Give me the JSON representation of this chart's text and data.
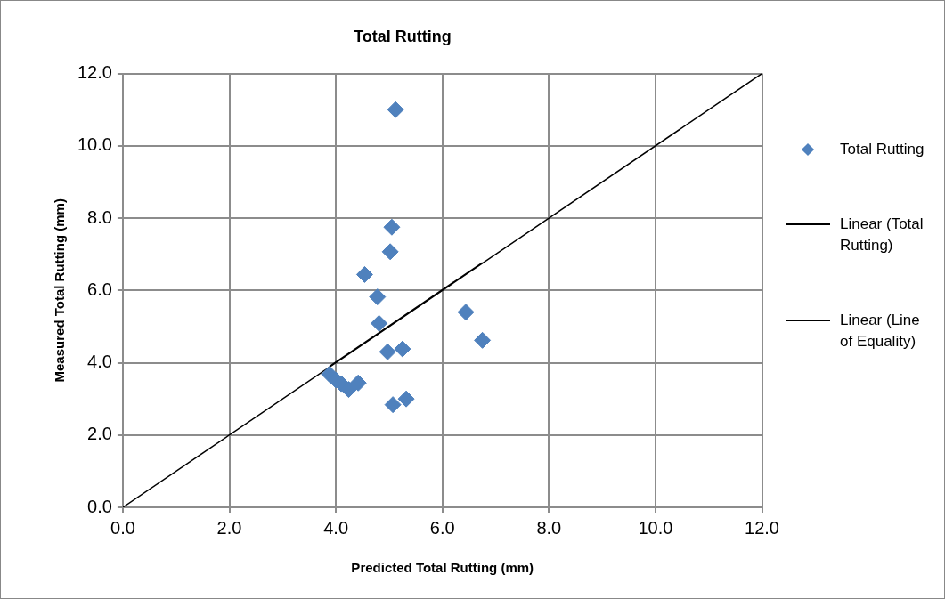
{
  "chart_data": {
    "type": "scatter",
    "title": "Total Rutting",
    "xlabel": "Predicted Total Rutting (mm)",
    "ylabel": "Measured Total Rutting (mm)",
    "xlim": [
      0,
      12
    ],
    "ylim": [
      0,
      12
    ],
    "xticks": [
      {
        "value": 0,
        "label": "0.0"
      },
      {
        "value": 2,
        "label": "2.0"
      },
      {
        "value": 4,
        "label": "4.0"
      },
      {
        "value": 6,
        "label": "6.0"
      },
      {
        "value": 8,
        "label": "8.0"
      },
      {
        "value": 10,
        "label": "10.0"
      },
      {
        "value": 12,
        "label": "12.0"
      }
    ],
    "yticks": [
      {
        "value": 0,
        "label": "0.0"
      },
      {
        "value": 2,
        "label": "2.0"
      },
      {
        "value": 4,
        "label": "4.0"
      },
      {
        "value": 6,
        "label": "6.0"
      },
      {
        "value": 8,
        "label": "8.0"
      },
      {
        "value": 10,
        "label": "10.0"
      },
      {
        "value": 12,
        "label": "12.0"
      }
    ],
    "grid": true,
    "legend": "right",
    "marker": "diamond",
    "series": [
      {
        "name": "Total Rutting",
        "color": "#4f81bd",
        "x": [
          5.12,
          5.05,
          5.02,
          4.54,
          4.78,
          4.81,
          4.97,
          5.25,
          6.44,
          6.75,
          3.88,
          4.0,
          4.1,
          4.24,
          4.42,
          5.07,
          5.32
        ],
        "values": [
          11.0,
          7.75,
          7.07,
          6.44,
          5.82,
          5.09,
          4.3,
          4.38,
          5.4,
          4.62,
          3.68,
          3.52,
          3.42,
          3.26,
          3.44,
          2.84,
          3.0
        ]
      },
      {
        "name": "Linear (Total Rutting)",
        "type": "line",
        "color": "#000000",
        "line_style": "solid",
        "marker": "none",
        "x": [
          3.88,
          6.75
        ],
        "values": [
          3.9,
          6.77
        ]
      },
      {
        "name": "Linear (Line of Equality)",
        "type": "line",
        "color": "#000000",
        "line_style": "solid",
        "marker": "none",
        "x": [
          0,
          12
        ],
        "values": [
          0,
          12
        ]
      }
    ]
  }
}
